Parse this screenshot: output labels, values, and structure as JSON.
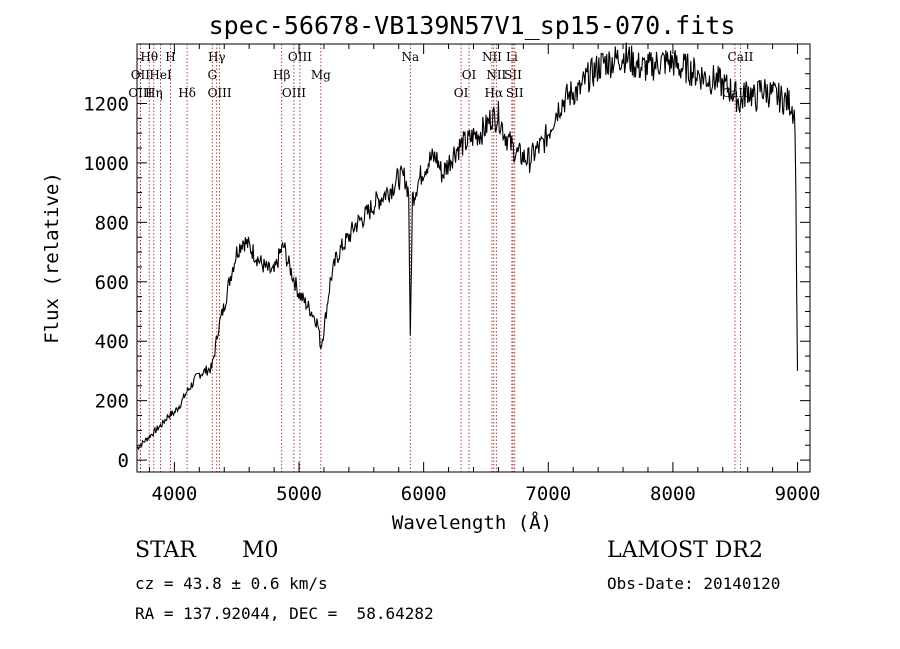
{
  "chart_data": {
    "type": "line",
    "title": "spec-56678-VB139N57V1_sp15-070.fits",
    "xlabel": "Wavelength (Å)",
    "ylabel": "Flux (relative)",
    "xlim": [
      3700,
      9100
    ],
    "ylim": [
      -40,
      1400
    ],
    "xticks": [
      4000,
      5000,
      6000,
      7000,
      8000,
      9000
    ],
    "yticks": [
      0,
      200,
      400,
      600,
      800,
      1000,
      1200
    ],
    "grid": false,
    "series": [
      {
        "x": [
          3700,
          3750,
          3800,
          3850,
          3900,
          3950,
          4000,
          4050,
          4100,
          4150,
          4200,
          4250,
          4300,
          4330,
          4350,
          4400,
          4450,
          4500,
          4550,
          4600,
          4650,
          4700,
          4750,
          4800,
          4850,
          4880,
          4900,
          4950,
          5000,
          5050,
          5100,
          5150,
          5175,
          5200,
          5250,
          5300,
          5350,
          5400,
          5450,
          5500,
          5550,
          5600,
          5650,
          5700,
          5750,
          5800,
          5850,
          5880,
          5893,
          5910,
          5950,
          6000,
          6050,
          6100,
          6150,
          6200,
          6250,
          6300,
          6350,
          6400,
          6450,
          6500,
          6550,
          6563,
          6600,
          6650,
          6700,
          6750,
          6800,
          6850,
          6900,
          6950,
          7000,
          7050,
          7100,
          7150,
          7200,
          7250,
          7300,
          7350,
          7400,
          7450,
          7500,
          7550,
          7600,
          7650,
          7700,
          7750,
          7800,
          7850,
          7900,
          7950,
          8000,
          8050,
          8100,
          8150,
          8200,
          8250,
          8300,
          8350,
          8400,
          8450,
          8498,
          8542,
          8600,
          8662,
          8700,
          8750,
          8800,
          8850,
          8900,
          8950,
          8980,
          9000
        ],
        "y": [
          40,
          60,
          80,
          100,
          120,
          150,
          160,
          190,
          230,
          260,
          290,
          300,
          310,
          380,
          440,
          520,
          620,
          700,
          740,
          720,
          690,
          660,
          640,
          630,
          700,
          720,
          680,
          620,
          560,
          530,
          500,
          460,
          380,
          440,
          600,
          680,
          720,
          750,
          790,
          810,
          830,
          860,
          880,
          900,
          920,
          950,
          950,
          900,
          400,
          880,
          930,
          980,
          1010,
          1020,
          960,
          1000,
          1040,
          1060,
          1070,
          1090,
          1100,
          1120,
          1160,
          1150,
          1160,
          1100,
          1060,
          1030,
          1020,
          1010,
          1040,
          1060,
          1100,
          1160,
          1200,
          1220,
          1240,
          1240,
          1280,
          1300,
          1320,
          1340,
          1340,
          1350,
          1360,
          1350,
          1330,
          1320,
          1320,
          1330,
          1340,
          1340,
          1340,
          1320,
          1320,
          1310,
          1300,
          1290,
          1280,
          1280,
          1260,
          1250,
          1230,
          1200,
          1250,
          1210,
          1250,
          1240,
          1230,
          1220,
          1210,
          1200,
          1150,
          300
        ]
      }
    ],
    "line_markers": [
      {
        "label": "Hθ",
        "x": 3798,
        "row": 0
      },
      {
        "label": "OII",
        "x": 3727,
        "row": 1
      },
      {
        "label": "OIII",
        "x": 3727,
        "row": 2
      },
      {
        "label": "Hη",
        "x": 3835,
        "row": 2
      },
      {
        "label": "H",
        "x": 3969,
        "row": 0
      },
      {
        "label": "HeI",
        "x": 3889,
        "row": 1
      },
      {
        "label": "Hδ",
        "x": 4102,
        "row": 2
      },
      {
        "label": "Hγ",
        "x": 4340,
        "row": 0
      },
      {
        "label": "G",
        "x": 4304,
        "row": 1
      },
      {
        "label": "OIII",
        "x": 4363,
        "row": 2
      },
      {
        "label": "OIII",
        "x": 5007,
        "row": 0
      },
      {
        "label": "Hβ",
        "x": 4861,
        "row": 1
      },
      {
        "label": "OIII",
        "x": 4959,
        "row": 2
      },
      {
        "label": "Mg",
        "x": 5175,
        "row": 1
      },
      {
        "label": "Na",
        "x": 5893,
        "row": 0
      },
      {
        "label": "OI",
        "x": 6364,
        "row": 1
      },
      {
        "label": "OI",
        "x": 6300,
        "row": 2
      },
      {
        "label": "NII",
        "x": 6548,
        "row": 0
      },
      {
        "label": "Li",
        "x": 6708,
        "row": 0
      },
      {
        "label": "NII",
        "x": 6583,
        "row": 1
      },
      {
        "label": "SII",
        "x": 6717,
        "row": 1
      },
      {
        "label": "Hα",
        "x": 6563,
        "row": 2
      },
      {
        "label": "SII",
        "x": 6731,
        "row": 2
      },
      {
        "label": "CaII",
        "x": 8542,
        "row": 0
      },
      {
        "label": "CaII",
        "x": 8498,
        "row": 2
      }
    ]
  },
  "info": {
    "class": "STAR",
    "subclass": "M0",
    "survey": "LAMOST DR2",
    "redshift": "cz = 43.8 ± 0.6 km/s",
    "obs_date": "Obs-Date: 20140120",
    "coords": "RA = 137.92044, DEC =  58.64282"
  }
}
